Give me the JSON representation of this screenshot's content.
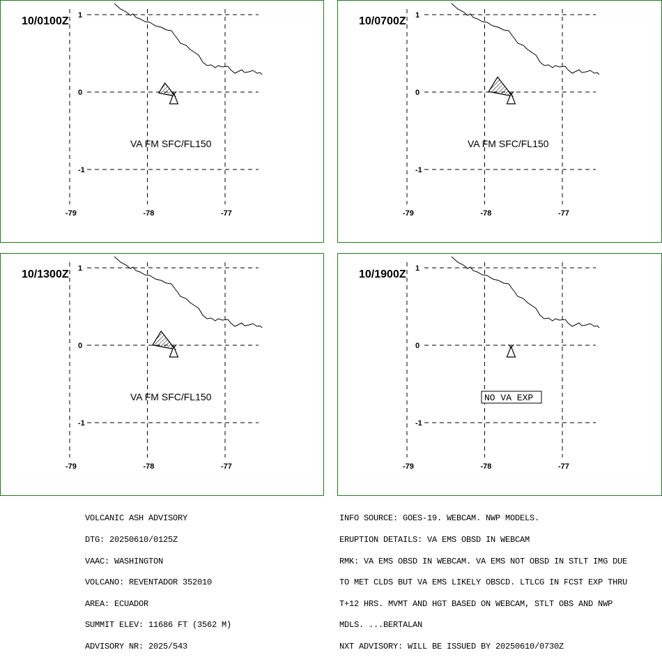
{
  "panels": [
    {
      "time": "10/0100Z",
      "label": "VA FM SFC/FL150",
      "ash_length": 1.0,
      "no_va_label": ""
    },
    {
      "time": "10/0700Z",
      "label": "VA FM SFC/FL150",
      "ash_length": 1.6,
      "no_va_label": ""
    },
    {
      "time": "10/1300Z",
      "label": "VA FM SFC/FL150",
      "ash_length": 1.5,
      "no_va_label": ""
    },
    {
      "time": "10/1900Z",
      "label": "",
      "ash_length": 0,
      "no_va_label": "NO VA EXP"
    }
  ],
  "map": {
    "lon_ticks": [
      "-79",
      "-78",
      "-77"
    ],
    "lat_ticks": [
      "1",
      "0",
      "-1"
    ]
  },
  "advisory_left": [
    "VOLCANIC ASH ADVISORY",
    "DTG: 20250610/0125Z",
    "VAAC: WASHINGTON",
    "VOLCANO: REVENTADOR 352010",
    "AREA: ECUADOR",
    "SUMMIT ELEV: 11686 FT (3562 M)",
    "ADVISORY NR: 2025/543"
  ],
  "advisory_right": [
    "INFO SOURCE: GOES-19. WEBCAM. NWP MODELS.",
    "ERUPTION DETAILS: VA EMS OBSD IN WEBCAM",
    "RMK: VA EMS OBSD IN WEBCAM. VA EMS NOT OBSD IN STLT IMG DUE",
    "TO MET CLDS BUT VA EMS LIKELY OBSCD. LTLCG IN FCST EXP THRU",
    "T+12 HRS. MVMT AND HGT BASED ON WEBCAM, STLT OBS AND NWP",
    "MDLS. ...BERTALAN",
    "NXT ADVISORY: WILL BE ISSUED BY 20250610/0730Z"
  ],
  "colors": {
    "panel_border": "#1a7f1a",
    "ink": "#000000"
  }
}
